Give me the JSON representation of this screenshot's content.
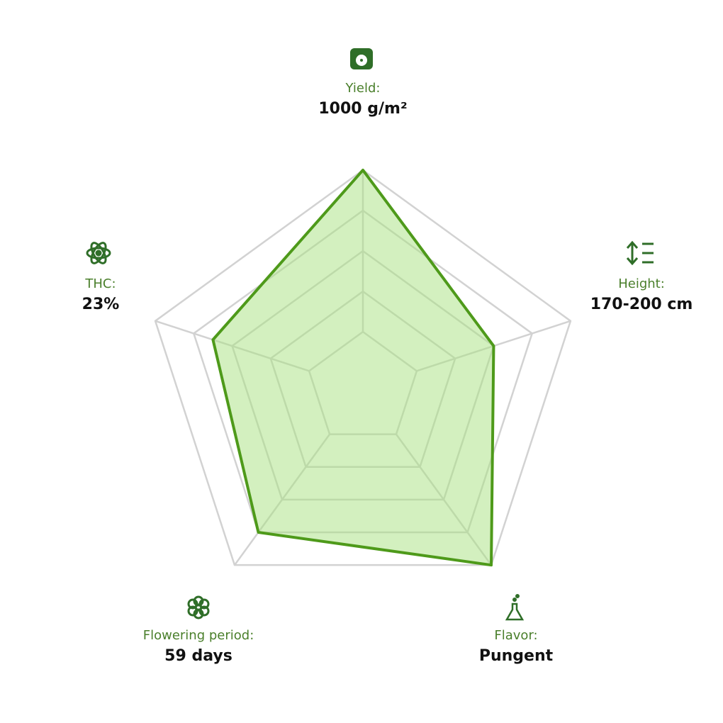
{
  "chart_data": {
    "type": "radar",
    "categories": [
      "Yield:",
      "Height:",
      "Flavor:",
      "Flowering period:",
      "THC:"
    ],
    "descriptions": [
      "1000 g/m²",
      "170-200 cm",
      "Pungent",
      "59 days",
      "23%"
    ],
    "values": [
      5,
      3,
      5,
      4,
      3.5
    ],
    "rlim": [
      -0.4,
      5
    ],
    "rticks": [
      1,
      2,
      3,
      4,
      5
    ],
    "color": "#4e9a1a",
    "fill": "#a8e27f",
    "grid": true
  }
}
